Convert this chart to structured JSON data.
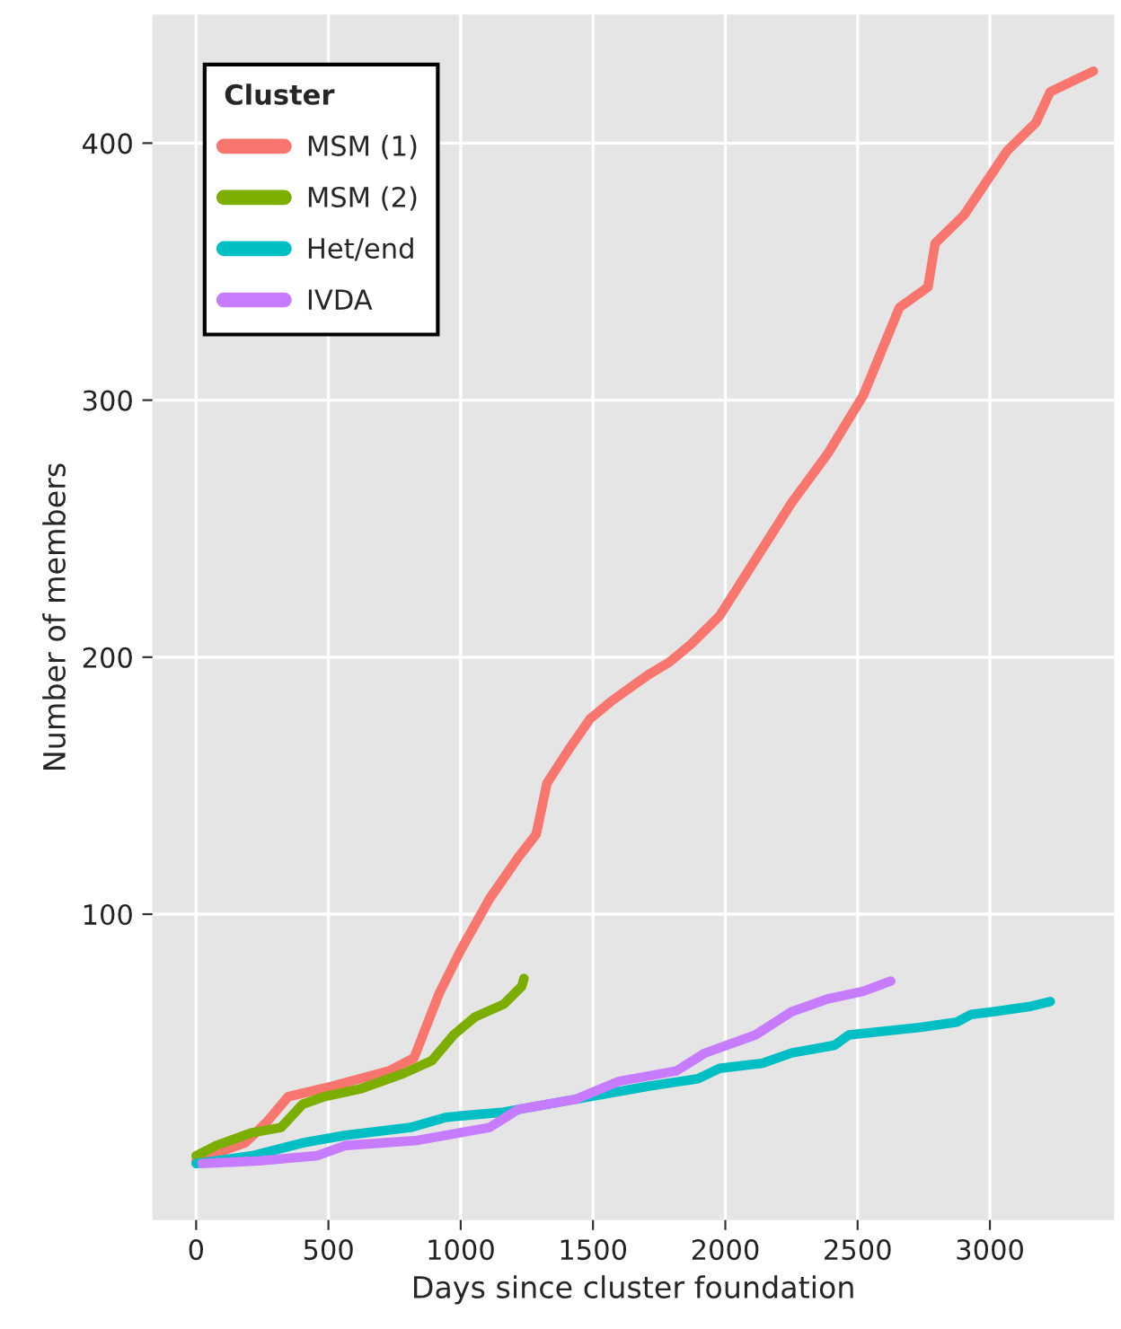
{
  "chart_data": {
    "type": "line",
    "xlabel": "Days since cluster foundation",
    "ylabel": "Number of members",
    "legend_title": "Cluster",
    "legend": "top left",
    "grid": true,
    "xlim": [
      -165,
      3470
    ],
    "xticks": [
      0,
      500,
      1000,
      1500,
      2000,
      2500,
      3000
    ],
    "ylim": [
      -19,
      450
    ],
    "yticks": [
      100,
      200,
      300,
      400
    ],
    "series": [
      {
        "name": "MSM (1)",
        "color": "#f8766d",
        "x": [
          0,
          76,
          185,
          266,
          348,
          511,
          728,
          823,
          918,
          1000,
          1109,
          1217,
          1285,
          1326,
          1408,
          1489,
          1571,
          1707,
          1788,
          1870,
          1978,
          2114,
          2250,
          2386,
          2522,
          2658,
          2766,
          2793,
          2902,
          3065,
          3174,
          3228,
          3391
        ],
        "values": [
          4,
          7,
          11,
          19,
          29,
          33,
          39,
          44,
          69,
          86,
          106,
          122,
          131,
          151,
          164,
          176,
          183,
          193,
          198,
          205,
          216,
          238,
          260,
          279,
          302,
          336,
          344,
          361,
          372,
          397,
          408,
          420,
          428
        ]
      },
      {
        "name": "MSM (2)",
        "color": "#7cae00",
        "x": [
          0,
          76,
          212,
          321,
          402,
          484,
          620,
          783,
          891,
          973,
          1054,
          1163,
          1231,
          1239
        ],
        "values": [
          6,
          10,
          15,
          17,
          26,
          29,
          32,
          38,
          43,
          53,
          60,
          65,
          72,
          75
        ]
      },
      {
        "name": "Het/end",
        "color": "#00bfc4",
        "x": [
          0,
          212,
          402,
          565,
          810,
          946,
          1163,
          1435,
          1707,
          1897,
          1978,
          2141,
          2250,
          2413,
          2467,
          2739,
          2875,
          2929,
          3011,
          3147,
          3228
        ],
        "values": [
          3,
          6,
          11,
          14,
          17,
          21,
          23,
          28,
          33,
          36,
          40,
          42,
          46,
          49,
          53,
          56,
          58,
          61,
          62,
          64,
          66
        ]
      },
      {
        "name": "IVDA",
        "color": "#c77cff",
        "x": [
          22,
          239,
          457,
          565,
          837,
          1109,
          1217,
          1435,
          1598,
          1815,
          1924,
          2114,
          2250,
          2386,
          2522,
          2625
        ],
        "values": [
          3,
          4,
          6,
          10,
          12,
          17,
          24,
          28,
          35,
          39,
          46,
          53,
          62,
          67,
          70,
          74
        ]
      }
    ]
  }
}
